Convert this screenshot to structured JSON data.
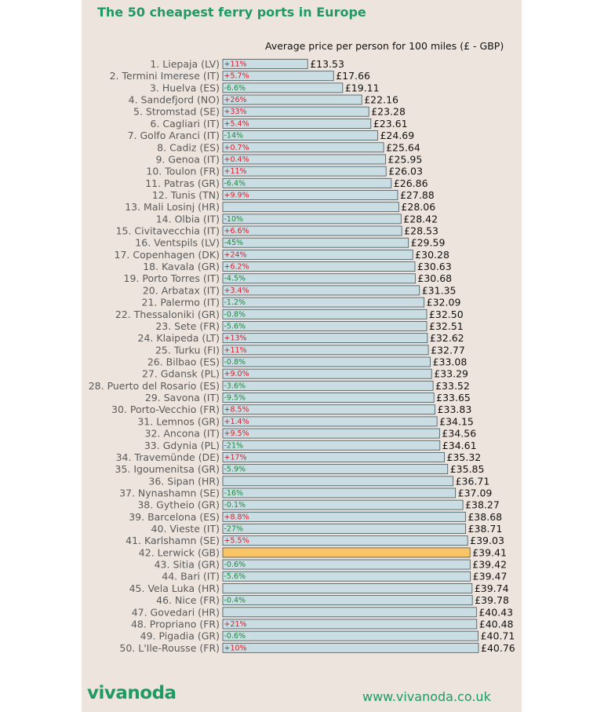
{
  "header": {
    "title": "The 50 cheapest ferry ports in Europe",
    "subtitle": "Average price per person for 100 miles (£ - GBP)"
  },
  "footer": {
    "logo": "vivanoda",
    "url": "www.vivanoda.co.uk"
  },
  "colors": {
    "bar": "#c9dde2",
    "bar_highlight": "#f9c567",
    "bar_border": "#3c5560",
    "positive_change": "#d6202c",
    "negative_change": "#1a8a3c",
    "neutral_change": "#333333",
    "label": "#5a5a5a",
    "brand": "#1f9a63"
  },
  "chart_data": {
    "type": "bar",
    "orientation": "horizontal",
    "title": "The 50 cheapest ferry ports in Europe",
    "xlabel": "Average price per person for 100 miles (£ - GBP)",
    "xlim": [
      0,
      40.76
    ],
    "grid": false,
    "highlight_index": 41,
    "categories": [
      "1. Liepaja (LV)",
      "2. Termini Imerese (IT)",
      "3. Huelva (ES)",
      "4. Sandefjord (NO)",
      "5. Stromstad (SE)",
      "6. Cagliari (IT)",
      "7. Golfo Aranci (IT)",
      "8. Cadiz (ES)",
      "9. Genoa (IT)",
      "10. Toulon (FR)",
      "11. Patras (GR)",
      "12. Tunis (TN)",
      "13. Mali Losinj (HR)",
      "14. Olbia (IT)",
      "15. Civitavecchia (IT)",
      "16. Ventspils (LV)",
      "17. Copenhagen (DK)",
      "18. Kavala (GR)",
      "19. Porto Torres (IT)",
      "20. Arbatax (IT)",
      "21. Palermo (IT)",
      "22. Thessaloniki (GR)",
      "23. Sete (FR)",
      "24. Klaipeda (LT)",
      "25. Turku (FI)",
      "26. Bilbao (ES)",
      "27. Gdansk (PL)",
      "28. Puerto del Rosario (ES)",
      "29. Savona (IT)",
      "30. Porto-Vecchio (FR)",
      "31. Lemnos (GR)",
      "32. Ancona (IT)",
      "33. Gdynia (PL)",
      "34. Travemünde (DE)",
      "35. Igoumenitsa (GR)",
      "36. Sipan (HR)",
      "37. Nynashamn (SE)",
      "38. Gytheio (GR)",
      "39. Barcelona (ES)",
      "40. Vieste (IT)",
      "41. Karlshamn (SE)",
      "42. Lerwick (GB)",
      "43. Sitia (GR)",
      "44. Bari (IT)",
      "45. Vela Luka (HR)",
      "46. Nice (FR)",
      "47. Govedari (HR)",
      "48. Propriano (FR)",
      "49. Pigadia (GR)",
      "50. L'Ile-Rousse (FR)"
    ],
    "values": [
      13.53,
      17.66,
      19.11,
      22.16,
      23.28,
      23.61,
      24.69,
      25.64,
      25.95,
      26.03,
      26.86,
      27.88,
      28.06,
      28.42,
      28.53,
      29.59,
      30.28,
      30.63,
      30.68,
      31.35,
      32.09,
      32.5,
      32.51,
      32.62,
      32.77,
      33.08,
      33.29,
      33.52,
      33.65,
      33.83,
      34.15,
      34.56,
      34.61,
      35.32,
      35.85,
      36.71,
      37.09,
      38.27,
      38.68,
      38.71,
      39.03,
      39.41,
      39.42,
      39.47,
      39.74,
      39.78,
      40.43,
      40.48,
      40.71,
      40.76
    ],
    "value_labels": [
      "£13.53",
      "£17.66",
      "£19.11",
      "£22.16",
      "£23.28",
      "£23.61",
      "£24.69",
      "£25.64",
      "£25.95",
      "£26.03",
      "£26.86",
      "£27.88",
      "£28.06",
      "£28.42",
      "£28.53",
      "£29.59",
      "£30.28",
      "£30.63",
      "£30.68",
      "£31.35",
      "£32.09",
      "£32.50",
      "£32.51",
      "£32.62",
      "£32.77",
      "£33.08",
      "£33.29",
      "£33.52",
      "£33.65",
      "£33.83",
      "£34.15",
      "£34.56",
      "£34.61",
      "£35.32",
      "£35.85",
      "£36.71",
      "£37.09",
      "£38.27",
      "£38.68",
      "£38.71",
      "£39.03",
      "£39.41",
      "£39.42",
      "£39.47",
      "£39.74",
      "£39.78",
      "£40.43",
      "£40.48",
      "£40.71",
      "£40.76"
    ],
    "changes": [
      "+11%",
      "+5.7%",
      "-6.6%",
      "+26%",
      "+33%",
      "+5.4%",
      "-14%",
      "+0.7%",
      "+0.4%",
      "+11%",
      "-6.4%",
      "+9.9%",
      "",
      "-10%",
      "+6.6%",
      "-45%",
      "+24%",
      "+6.2%",
      "-4.5%",
      "+3.4%",
      "-1.2%",
      "-0.8%",
      "-5.6%",
      "+13%",
      "+11%",
      "-0.8%",
      "+9.0%",
      "-3.6%",
      "-9.5%",
      "+8.5%",
      "+1.4%",
      "+9.5%",
      "-21%",
      "+17%",
      "-5.9%",
      "",
      "-16%",
      "-0.1%",
      "+8.8%",
      "-27%",
      "+5.5%",
      "",
      "-0.6%",
      "-5.6%",
      "",
      "-0.4%",
      "",
      "+21%",
      "-0.6%",
      "+10%"
    ]
  }
}
